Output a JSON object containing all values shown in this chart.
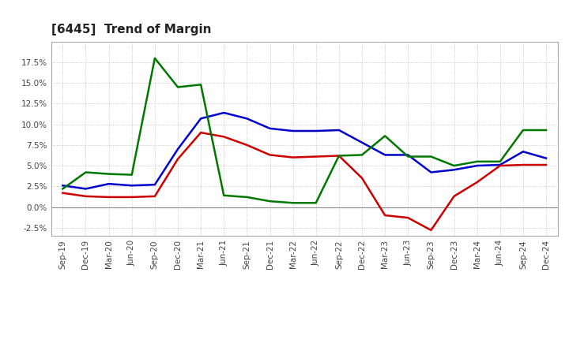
{
  "title": "[6445]  Trend of Margin",
  "x_labels": [
    "Sep-19",
    "Dec-19",
    "Mar-20",
    "Jun-20",
    "Sep-20",
    "Dec-20",
    "Mar-21",
    "Jun-21",
    "Sep-21",
    "Dec-21",
    "Mar-22",
    "Jun-22",
    "Sep-22",
    "Dec-22",
    "Mar-23",
    "Jun-23",
    "Sep-23",
    "Dec-23",
    "Mar-24",
    "Jun-24",
    "Sep-24",
    "Dec-24"
  ],
  "ordinary_income": [
    2.6,
    2.2,
    2.8,
    2.6,
    2.7,
    7.0,
    10.7,
    11.4,
    10.7,
    9.5,
    9.2,
    9.2,
    9.3,
    7.8,
    6.3,
    6.3,
    4.2,
    4.5,
    5.0,
    5.1,
    6.7,
    5.9
  ],
  "net_income": [
    1.7,
    1.3,
    1.2,
    1.2,
    1.3,
    5.8,
    9.0,
    8.5,
    7.5,
    6.3,
    6.0,
    6.1,
    6.2,
    3.5,
    -1.0,
    -1.3,
    -2.8,
    1.3,
    3.0,
    5.0,
    5.1,
    5.1
  ],
  "operating_cashflow": [
    2.2,
    4.2,
    4.0,
    3.9,
    18.0,
    14.5,
    14.8,
    1.4,
    1.2,
    0.7,
    0.5,
    0.5,
    6.2,
    6.3,
    8.6,
    6.1,
    6.1,
    5.0,
    5.5,
    5.5,
    9.3,
    9.3
  ],
  "ylim": [
    -3.5,
    20.0
  ],
  "yticks": [
    -2.5,
    0.0,
    2.5,
    5.0,
    7.5,
    10.0,
    12.5,
    15.0,
    17.5
  ],
  "line_colors": {
    "ordinary_income": "#0000cc",
    "net_income": "#cc0000",
    "operating_cashflow": "#007700"
  },
  "line_width": 1.8,
  "background_color": "#ffffff",
  "grid_color": "#bbbbbb",
  "title_fontsize": 11,
  "tick_fontsize": 7.5,
  "legend_fontsize": 8.5
}
